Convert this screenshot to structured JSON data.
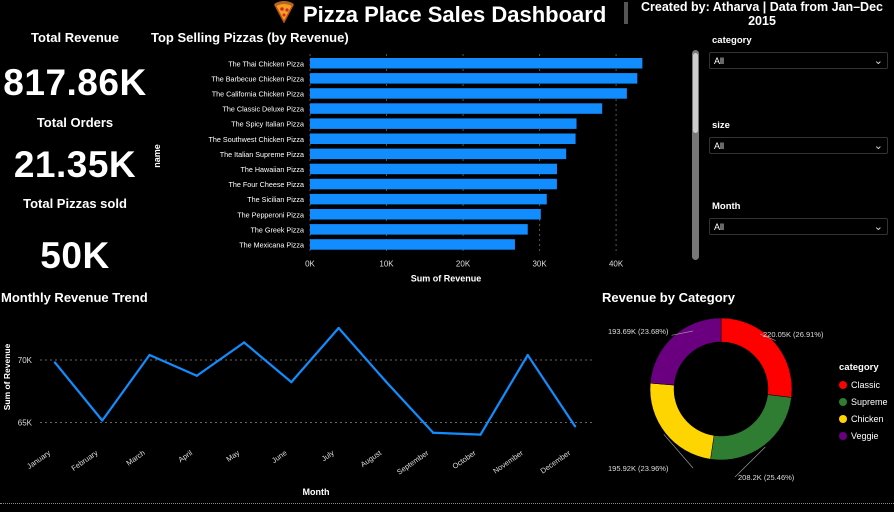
{
  "header": {
    "title": "Pizza Place Sales Dashboard",
    "icon": "pizza-slice-icon",
    "credit": "Created by: Atharva | Data from Jan–Dec 2015"
  },
  "kpis": {
    "revenue_label": "Total Revenue",
    "revenue_value": "817.86K",
    "orders_label": "Total Orders",
    "orders_value": "21.35K",
    "pizzas_label": "Total Pizzas sold",
    "pizzas_value": "50K"
  },
  "slicers": {
    "category": {
      "label": "category",
      "value": "All"
    },
    "size": {
      "label": "size",
      "value": "All"
    },
    "month": {
      "label": "Month",
      "value": "All"
    }
  },
  "colors": {
    "bar": "#118DFF",
    "line": "#118DFF",
    "Classic": "#FF0000",
    "Supreme": "#2E7D32",
    "Chicken": "#FFD500",
    "Veggie": "#6A0080"
  },
  "chart_data": [
    {
      "id": "top-pizzas",
      "type": "bar",
      "orientation": "horizontal",
      "title": "Top Selling Pizzas (by Revenue)",
      "xlabel": "Sum of Revenue",
      "ylabel": "name",
      "categories": [
        "The Thai Chicken Pizza",
        "The Barbecue Chicken Pizza",
        "The California Chicken Pizza",
        "The Classic Deluxe Pizza",
        "The Spicy Italian Pizza",
        "The Southwest Chicken Pizza",
        "The Italian Supreme Pizza",
        "The Hawaiian Pizza",
        "The Four Cheese Pizza",
        "The Sicilian Pizza",
        "The Pepperoni Pizza",
        "The Greek Pizza",
        "The Mexicana Pizza"
      ],
      "values": [
        43434,
        42768,
        41410,
        38180,
        34831,
        34706,
        33477,
        32273,
        32266,
        30940,
        30162,
        28454,
        26781
      ],
      "xticks": [
        0,
        10000,
        20000,
        30000,
        40000
      ],
      "xtick_labels": [
        "0K",
        "10K",
        "20K",
        "30K",
        "40K"
      ],
      "xlim": [
        0,
        46000
      ],
      "grid": true
    },
    {
      "id": "monthly-trend",
      "type": "line",
      "title": "Monthly Revenue Trend",
      "xlabel": "Month",
      "ylabel": "Sum of Revenue",
      "categories": [
        "January",
        "February",
        "March",
        "April",
        "May",
        "June",
        "July",
        "August",
        "September",
        "October",
        "November",
        "December"
      ],
      "values": [
        69793,
        65160,
        70397,
        68737,
        71403,
        68230,
        72558,
        68278,
        64180,
        64028,
        70395,
        64701
      ],
      "yticks": [
        65000,
        70000
      ],
      "ytick_labels": [
        "65K",
        "70K"
      ],
      "ylim": [
        63200,
        73200
      ],
      "grid": true
    },
    {
      "id": "category-donut",
      "type": "pie",
      "donut": true,
      "title": "Revenue by Category",
      "legend_title": "category",
      "legend_position": "right",
      "slices": [
        {
          "name": "Classic",
          "value": 220050,
          "label": "220.05K (26.91%)"
        },
        {
          "name": "Supreme",
          "value": 208200,
          "label": "208.2K (25.46%)"
        },
        {
          "name": "Chicken",
          "value": 195920,
          "label": "195.92K (23.96%)"
        },
        {
          "name": "Veggie",
          "value": 193690,
          "label": "193.69K (23.68%)"
        }
      ]
    }
  ]
}
